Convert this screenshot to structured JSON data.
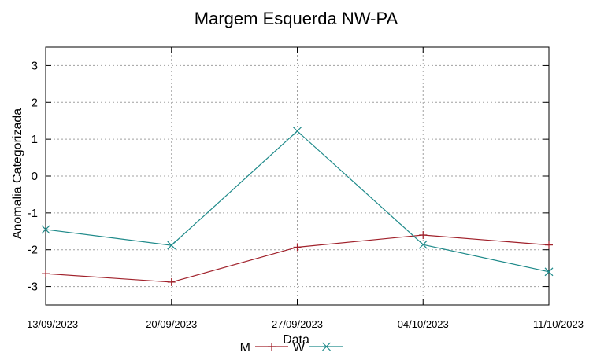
{
  "chart_data": {
    "type": "line",
    "title": "Margem Esquerda NW-PA",
    "xlabel": "Data",
    "ylabel": "Anomalia Categorizada",
    "categories": [
      "13/09/2023",
      "20/09/2023",
      "27/09/2023",
      "04/10/2023",
      "11/10/2023"
    ],
    "yticks": [
      "3",
      "2",
      "1",
      "0",
      "-1",
      "-2",
      "-3"
    ],
    "ylim": [
      -3.5,
      3.5
    ],
    "grid": true,
    "legend_position": "bottom-center",
    "series": [
      {
        "name": "M",
        "values": [
          -2.65,
          -2.88,
          -1.93,
          -1.6,
          -1.87
        ],
        "color": "#a0202a",
        "marker": "plus"
      },
      {
        "name": "W",
        "values": [
          -1.45,
          -1.88,
          1.22,
          -1.86,
          -2.6
        ],
        "color": "#1f8a8a",
        "marker": "cross"
      }
    ]
  }
}
